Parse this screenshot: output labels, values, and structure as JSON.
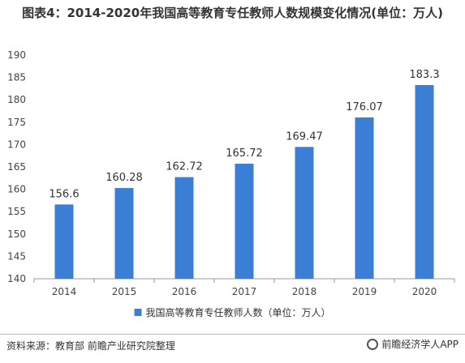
{
  "title": "图表4：2014-2020年我国高等教育专任教师人数规模变化情况(单位：万人)",
  "source": "资料来源：教育部 前瞻产业研究院整理",
  "brand": "前瞻经济学人APP",
  "colors": {
    "bar": "#3a7fd5",
    "axis": "#999999",
    "grid": "#e6e6e6"
  },
  "chart_data": {
    "type": "bar",
    "categories": [
      "2014",
      "2015",
      "2016",
      "2017",
      "2018",
      "2019",
      "2020"
    ],
    "series": [
      {
        "name": "我国高等教育专任教师人数（单位：万人）",
        "values": [
          156.6,
          160.28,
          162.72,
          165.72,
          169.47,
          176.07,
          183.3
        ],
        "labels": [
          "156.6",
          "160.28",
          "162.72",
          "165.72",
          "169.47",
          "176.07",
          "183.3"
        ]
      }
    ],
    "ylim": [
      140,
      190
    ],
    "yticks": [
      140,
      145,
      150,
      155,
      160,
      165,
      170,
      175,
      180,
      185,
      190
    ],
    "legend": "bottom",
    "grid": false
  }
}
